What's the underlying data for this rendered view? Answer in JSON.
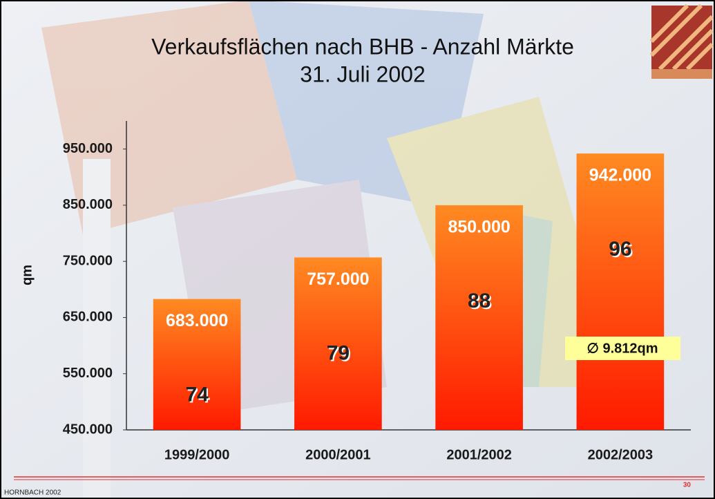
{
  "chart_data": {
    "type": "bar",
    "title": "Verkaufsflächen nach BHB - Anzahl Märkte",
    "subtitle": "31. Juli 2002",
    "y_label": "qm",
    "categories": [
      "1999/2000",
      "2000/2001",
      "2001/2002",
      "2002/2003"
    ],
    "values": [
      683000,
      757000,
      850000,
      942000
    ],
    "value_labels": [
      "683.000",
      "757.000",
      "850.000",
      "942.000"
    ],
    "store_counts": [
      74,
      79,
      88,
      96
    ],
    "annotation": "∅ 9.812qm",
    "color": "#ff1a00",
    "ylim": [
      450000,
      1000000
    ],
    "yticks": [
      {
        "value": 450000,
        "label": "450.000"
      },
      {
        "value": 550000,
        "label": "550.000"
      },
      {
        "value": 650000,
        "label": "650.000"
      },
      {
        "value": 750000,
        "label": "750.000"
      },
      {
        "value": 850000,
        "label": "850.000"
      },
      {
        "value": 950000,
        "label": "950.000"
      }
    ],
    "footer": "HORNBACH 2002",
    "page_number": "30"
  }
}
